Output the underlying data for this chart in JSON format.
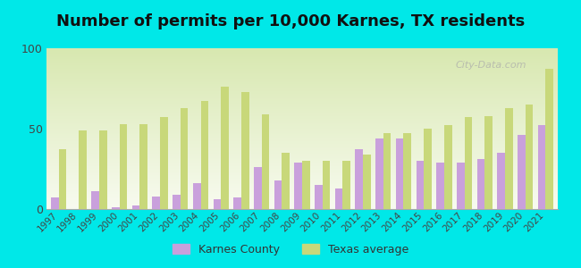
{
  "title": "Number of permits per 10,000 Karnes, TX residents",
  "years": [
    1997,
    1998,
    1999,
    2000,
    2001,
    2002,
    2003,
    2004,
    2005,
    2006,
    2007,
    2008,
    2009,
    2010,
    2011,
    2012,
    2013,
    2014,
    2015,
    2016,
    2017,
    2018,
    2019,
    2020,
    2021
  ],
  "karnes_county": [
    7,
    0,
    11,
    1,
    2,
    8,
    9,
    16,
    6,
    7,
    26,
    18,
    29,
    15,
    13,
    37,
    44,
    44,
    30,
    29,
    29,
    31,
    35,
    46,
    52
  ],
  "texas_avg": [
    37,
    49,
    49,
    53,
    53,
    57,
    63,
    67,
    76,
    73,
    59,
    35,
    30,
    30,
    30,
    34,
    47,
    47,
    50,
    52,
    57,
    58,
    63,
    65,
    87
  ],
  "karnes_color": "#c9a0dc",
  "texas_color": "#c8d87a",
  "background_color": "#00e8e8",
  "grad_top": "#d8e8b0",
  "grad_bottom": "#f8fbf0",
  "ylim": [
    0,
    100
  ],
  "yticks": [
    0,
    50,
    100
  ],
  "title_fontsize": 13,
  "watermark": "City-Data.com"
}
